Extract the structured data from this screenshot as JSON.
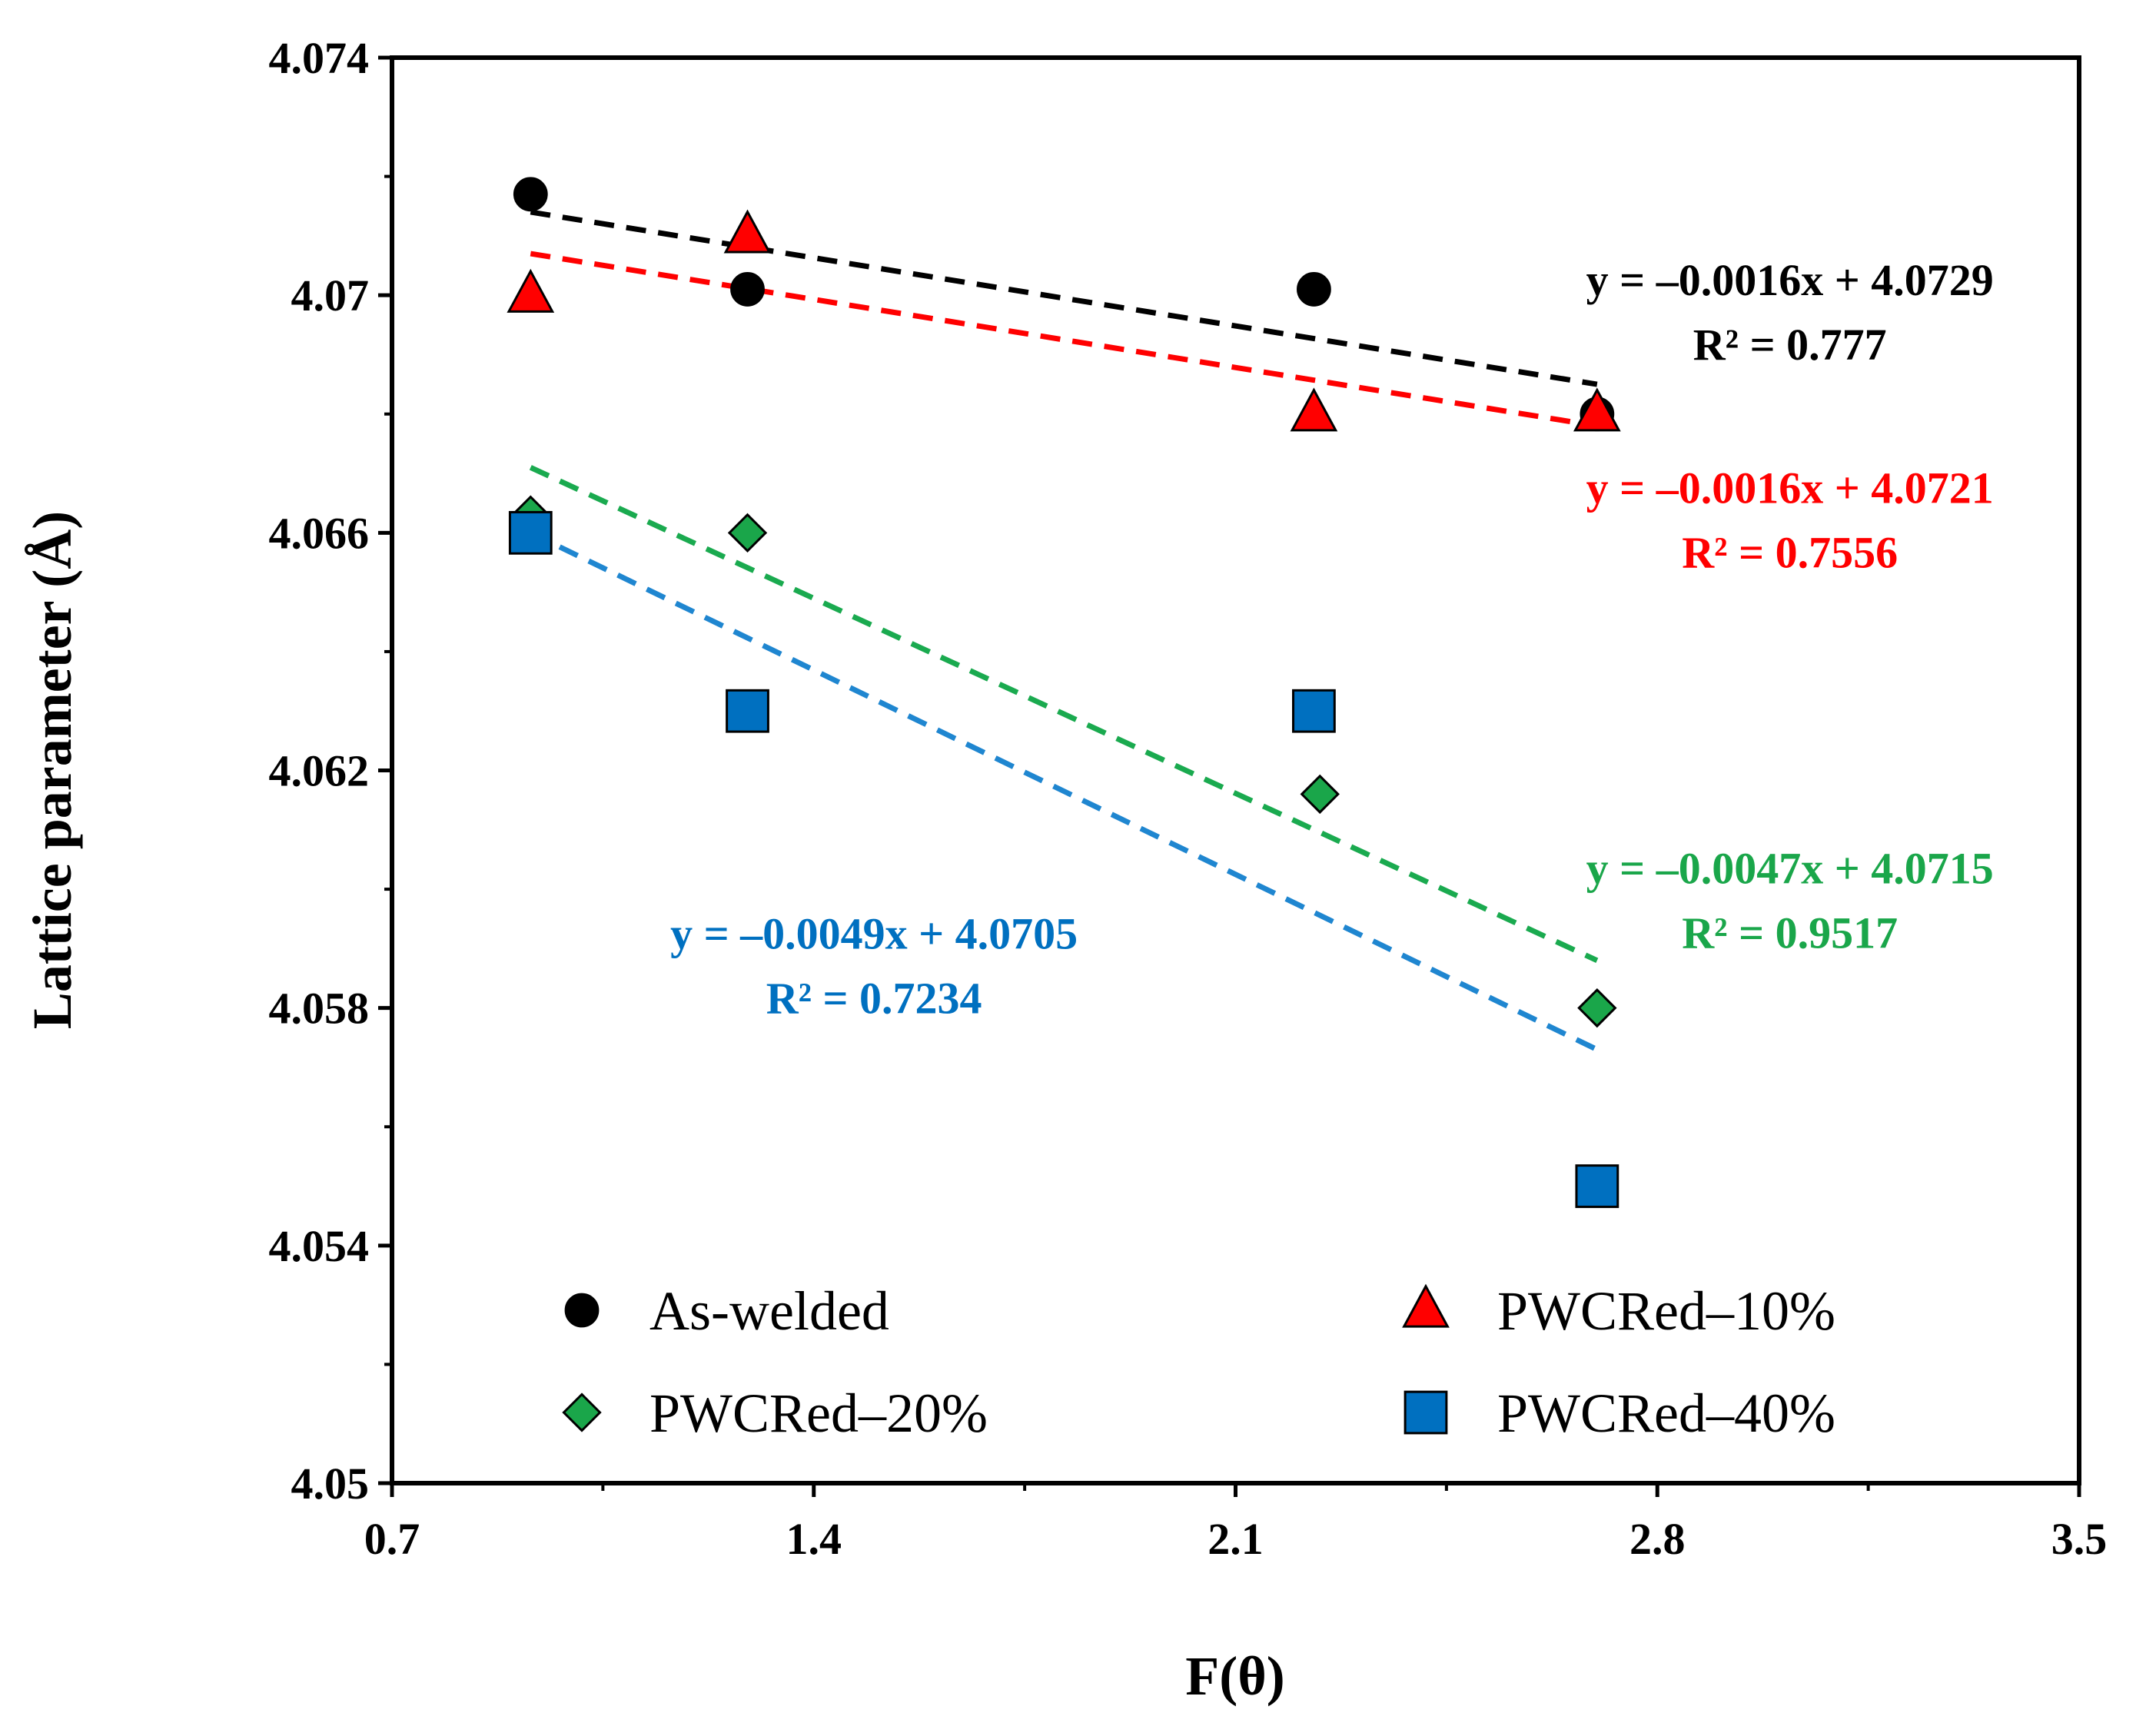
{
  "chart_data": {
    "type": "scatter",
    "title": "",
    "xlabel": "F(θ)",
    "ylabel": "Lattice parameter (Å)",
    "xlim": [
      0.7,
      3.5
    ],
    "ylim": [
      4.05,
      4.074
    ],
    "xticks": [
      0.7,
      1.4,
      2.1,
      2.8,
      3.5
    ],
    "xtick_labels": [
      "0.7",
      "1.4",
      "2.1",
      "2.8",
      "3.5"
    ],
    "yticks": [
      4.05,
      4.054,
      4.058,
      4.062,
      4.066,
      4.07,
      4.074
    ],
    "ytick_labels": [
      "4.05",
      "4.054",
      "4.058",
      "4.062",
      "4.066",
      "4.07",
      "4.074"
    ],
    "grid": false,
    "legend_position": "bottom",
    "series": [
      {
        "name": "As-welded",
        "marker": "circle",
        "color": "#000000",
        "trend_color": "#000000",
        "x": [
          0.93,
          1.29,
          2.23,
          2.7
        ],
        "y": [
          4.0717,
          4.0701,
          4.0701,
          4.068
        ],
        "trend_x": [
          0.93,
          2.7
        ],
        "trend_y": [
          4.0714,
          4.0685
        ],
        "equation": "y = –0.0016x + 4.0729",
        "r2": "R² = 0.777",
        "label_anchor": [
          3.02,
          4.07
        ]
      },
      {
        "name": "PWCRed–10%",
        "marker": "triangle",
        "color": "#ff0000",
        "trend_color": "#ff0000",
        "x": [
          0.93,
          1.29,
          2.23,
          2.7
        ],
        "y": [
          4.07,
          4.071,
          4.068,
          4.068
        ],
        "trend_x": [
          0.93,
          2.7
        ],
        "trend_y": [
          4.0707,
          4.0678
        ],
        "equation": "y = –0.0016x + 4.0721",
        "r2": "R² = 0.7556",
        "label_anchor": [
          3.02,
          4.0665
        ]
      },
      {
        "name": "PWCRed–20%",
        "marker": "diamond",
        "color": "#1aa64a",
        "trend_color": "#1aaa4f",
        "x": [
          0.93,
          1.29,
          2.24,
          2.7
        ],
        "y": [
          4.0663,
          4.066,
          4.0616,
          4.058
        ],
        "trend_x": [
          0.93,
          2.7
        ],
        "trend_y": [
          4.0671,
          4.0588
        ],
        "equation": "y = –0.0047x + 4.0715",
        "r2": "R² = 0.9517",
        "label_anchor": [
          3.02,
          4.0601
        ]
      },
      {
        "name": "PWCRed–40%",
        "marker": "square",
        "color": "#0070c0",
        "trend_color": "#1f86d0",
        "x": [
          0.93,
          1.29,
          2.23,
          2.7
        ],
        "y": [
          4.066,
          4.063,
          4.063,
          4.055
        ],
        "trend_x": [
          0.93,
          2.7
        ],
        "trend_y": [
          4.066,
          4.0573
        ],
        "equation": "y = –0.0049x + 4.0705",
        "r2": "R² = 0.7234",
        "label_anchor": [
          1.5,
          4.059
        ]
      }
    ]
  }
}
